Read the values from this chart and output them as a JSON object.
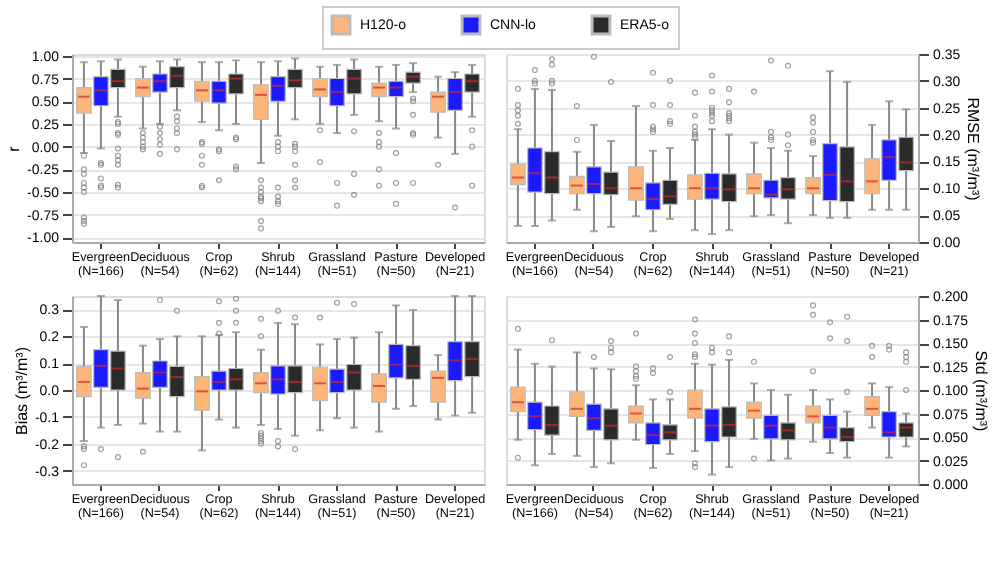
{
  "chart_data": [
    {
      "type": "box",
      "ylabel": "r",
      "legend": "top",
      "grid": "y",
      "categories": [
        "Evergreen (N=166)",
        "Deciduous (N=54)",
        "Crop (N=62)",
        "Shrub (N=144)",
        "Grassland (N=51)",
        "Pasture (N=50)",
        "Developed (N=21)"
      ],
      "ylim": [
        -1.05,
        1.02
      ],
      "yticks": [
        {
          "value": -1,
          "label": "-1.00"
        },
        {
          "value": -0.75,
          "label": "-0.75"
        },
        {
          "value": -0.5,
          "label": "-0.50"
        },
        {
          "value": -0.25,
          "label": "-0.25"
        },
        {
          "value": 0,
          "label": "0.00"
        },
        {
          "value": 0.25,
          "label": "0.25"
        },
        {
          "value": 0.5,
          "label": "0.50"
        },
        {
          "value": 0.75,
          "label": "0.75"
        },
        {
          "value": 1,
          "label": "1.00"
        }
      ],
      "series": [
        {
          "name": "H120-o",
          "color": "#fdb57a",
          "boxes": [
            {
              "low": -0.07,
              "q1": 0.37,
              "median": 0.55,
              "q3": 0.65,
              "high": 0.93,
              "outliers": [
                -0.1,
                -0.25,
                -0.3,
                -0.4,
                -0.45,
                -0.5,
                -0.78,
                -0.82,
                -0.85
              ]
            },
            {
              "low": 0.2,
              "q1": 0.55,
              "median": 0.65,
              "q3": 0.75,
              "high": 0.88,
              "outliers": [
                0.15,
                0.1,
                0.05,
                0,
                -0.03
              ]
            },
            {
              "low": 0.27,
              "q1": 0.5,
              "median": 0.62,
              "q3": 0.72,
              "high": 0.93,
              "outliers": [
                0.05,
                0.03,
                -0.1,
                -0.2,
                -0.43,
                -0.45
              ]
            },
            {
              "low": -0.18,
              "q1": 0.3,
              "median": 0.57,
              "q3": 0.68,
              "high": 0.93,
              "outliers": [
                -0.37,
                -0.45,
                -0.5,
                -0.55,
                -0.57,
                -0.6,
                -0.82,
                -0.9
              ]
            },
            {
              "low": 0.25,
              "q1": 0.55,
              "median": 0.63,
              "q3": 0.75,
              "high": 0.88,
              "outliers": [
                0.18,
                -0.17
              ]
            },
            {
              "low": 0.28,
              "q1": 0.55,
              "median": 0.65,
              "q3": 0.7,
              "high": 0.88,
              "outliers": [
                0.15,
                0.05,
                0,
                -0.25,
                -0.43
              ]
            },
            {
              "low": 0.1,
              "q1": 0.38,
              "median": 0.55,
              "q3": 0.6,
              "high": 0.77,
              "outliers": [
                -0.2
              ]
            }
          ]
        },
        {
          "name": "CNN-lo",
          "color": "#1a1aff",
          "boxes": [
            {
              "low": -0.02,
              "q1": 0.45,
              "median": 0.62,
              "q3": 0.77,
              "high": 0.94,
              "outliers": [
                -0.18,
                -0.2,
                -0.35,
                -0.43,
                -0.45
              ]
            },
            {
              "low": 0.25,
              "q1": 0.6,
              "median": 0.72,
              "q3": 0.8,
              "high": 0.94,
              "outliers": [
                0.22,
                0.15,
                0.08,
                0.02,
                -0.08
              ]
            },
            {
              "low": 0.18,
              "q1": 0.48,
              "median": 0.62,
              "q3": 0.72,
              "high": 0.93,
              "outliers": [
                -0.03,
                -0.05,
                -0.37
              ]
            },
            {
              "low": 0.12,
              "q1": 0.5,
              "median": 0.67,
              "q3": 0.77,
              "high": 0.94,
              "outliers": [
                0.05,
                0,
                -0.05,
                -0.45,
                -0.55,
                -0.6,
                -0.63
              ]
            },
            {
              "low": 0.15,
              "q1": 0.45,
              "median": 0.6,
              "q3": 0.75,
              "high": 0.9,
              "outliers": [
                -0.4,
                -0.65
              ]
            },
            {
              "low": 0.2,
              "q1": 0.55,
              "median": 0.65,
              "q3": 0.72,
              "high": 0.9,
              "outliers": [
                -0.07,
                -0.4,
                -0.63
              ]
            },
            {
              "low": -0.08,
              "q1": 0.4,
              "median": 0.6,
              "q3": 0.75,
              "high": 0.82,
              "outliers": [
                -0.67
              ]
            }
          ]
        },
        {
          "name": "ERA5-o",
          "color": "#2b2b2b",
          "boxes": [
            {
              "low": 0.33,
              "q1": 0.65,
              "median": 0.72,
              "q3": 0.85,
              "high": 0.96,
              "outliers": [
                0.27,
                0.25,
                0.15,
                0.13,
                -0.02,
                -0.1,
                -0.15,
                -0.2,
                -0.42,
                -0.45
              ]
            },
            {
              "low": 0.4,
              "q1": 0.65,
              "median": 0.78,
              "q3": 0.88,
              "high": 0.96,
              "outliers": [
                0.33,
                0.28,
                0.2,
                0.15,
                -0.03
              ]
            },
            {
              "low": 0.25,
              "q1": 0.58,
              "median": 0.75,
              "q3": 0.8,
              "high": 0.95,
              "outliers": [
                0.1,
                0.08,
                -0.22,
                -0.25
              ]
            },
            {
              "low": 0.3,
              "q1": 0.65,
              "median": 0.73,
              "q3": 0.85,
              "high": 0.97,
              "outliers": [
                0.03,
                0,
                -0.05,
                -0.2,
                -0.37,
                -0.45
              ]
            },
            {
              "low": 0.35,
              "q1": 0.58,
              "median": 0.75,
              "q3": 0.85,
              "high": 0.96,
              "outliers": [
                0.17,
                -0.3,
                -0.53
              ]
            },
            {
              "low": 0.6,
              "q1": 0.7,
              "median": 0.77,
              "q3": 0.82,
              "high": 0.92,
              "outliers": [
                0.53,
                0.5,
                0.35,
                0.15,
                0.13,
                -0.4
              ]
            },
            {
              "low": 0.33,
              "q1": 0.6,
              "median": 0.72,
              "q3": 0.8,
              "high": 0.9,
              "outliers": [
                0.18,
                0,
                -0.43
              ]
            }
          ]
        }
      ]
    },
    {
      "type": "box",
      "ylabel": "RMSE (m³/m³)",
      "grid": "y",
      "categories": [
        "Evergreen (N=166)",
        "Deciduous (N=54)",
        "Crop (N=62)",
        "Shrub (N=144)",
        "Grassland (N=51)",
        "Pasture (N=50)",
        "Developed (N=21)"
      ],
      "ylim": [
        0,
        0.35
      ],
      "yticks": [
        {
          "value": 0,
          "label": "0.00"
        },
        {
          "value": 0.05,
          "label": "0.05"
        },
        {
          "value": 0.1,
          "label": "0.10"
        },
        {
          "value": 0.15,
          "label": "0.15"
        },
        {
          "value": 0.2,
          "label": "0.20"
        },
        {
          "value": 0.25,
          "label": "0.25"
        },
        {
          "value": 0.3,
          "label": "0.30"
        },
        {
          "value": 0.35,
          "label": "0.35"
        }
      ],
      "series": [
        {
          "color": "#fdb57a",
          "boxes": [
            {
              "low": 0.03,
              "q1": 0.107,
              "median": 0.12,
              "q3": 0.145,
              "high": 0.21,
              "outliers": [
                0.22,
                0.235,
                0.245,
                0.255,
                0.285
              ]
            },
            {
              "low": 0.06,
              "q1": 0.09,
              "median": 0.105,
              "q3": 0.122,
              "high": 0.168,
              "outliers": [
                0.19,
                0.253
              ]
            },
            {
              "low": 0.048,
              "q1": 0.078,
              "median": 0.1,
              "q3": 0.14,
              "high": 0.253
            },
            {
              "low": 0.022,
              "q1": 0.08,
              "median": 0.1,
              "q3": 0.125,
              "high": 0.19,
              "outliers": [
                0.195,
                0.2,
                0.205,
                0.215,
                0.235,
                0.278
              ]
            },
            {
              "low": 0.048,
              "q1": 0.09,
              "median": 0.1,
              "q3": 0.127,
              "high": 0.185,
              "outliers": [
                0.28
              ]
            },
            {
              "low": 0.05,
              "q1": 0.09,
              "median": 0.1,
              "q3": 0.12,
              "high": 0.16,
              "outliers": [
                0.185,
                0.19,
                0.205,
                0.222,
                0.232
              ]
            },
            {
              "low": 0.06,
              "q1": 0.09,
              "median": 0.113,
              "q3": 0.155,
              "high": 0.218
            }
          ]
        },
        {
          "color": "#1a1aff",
          "boxes": [
            {
              "low": 0.03,
              "q1": 0.093,
              "median": 0.128,
              "q3": 0.175,
              "high": 0.285,
              "outliers": [
                0.295,
                0.3,
                0.32
              ]
            },
            {
              "low": 0.02,
              "q1": 0.09,
              "median": 0.108,
              "q3": 0.14,
              "high": 0.218,
              "outliers": [
                0.345
              ]
            },
            {
              "low": 0.02,
              "q1": 0.06,
              "median": 0.08,
              "q3": 0.11,
              "high": 0.17,
              "outliers": [
                0.205,
                0.21,
                0.215,
                0.255,
                0.315
              ]
            },
            {
              "low": 0.015,
              "q1": 0.08,
              "median": 0.1,
              "q3": 0.128,
              "high": 0.21,
              "outliers": [
                0.225,
                0.235,
                0.24,
                0.245,
                0.25,
                0.28,
                0.31
              ]
            },
            {
              "low": 0.05,
              "q1": 0.082,
              "median": 0.088,
              "q3": 0.115,
              "high": 0.175,
              "outliers": [
                0.19,
                0.195,
                0.205,
                0.338
              ]
            },
            {
              "low": 0.045,
              "q1": 0.077,
              "median": 0.125,
              "q3": 0.183,
              "high": 0.318
            },
            {
              "low": 0.06,
              "q1": 0.115,
              "median": 0.158,
              "q3": 0.19,
              "high": 0.262
            }
          ]
        },
        {
          "color": "#2b2b2b",
          "boxes": [
            {
              "low": 0.04,
              "q1": 0.09,
              "median": 0.12,
              "q3": 0.168,
              "high": 0.283,
              "outliers": [
                0.295,
                0.3,
                0.33,
                0.34
              ]
            },
            {
              "low": 0.028,
              "q1": 0.088,
              "median": 0.1,
              "q3": 0.13,
              "high": 0.188,
              "outliers": [
                0.298
              ]
            },
            {
              "low": 0.043,
              "q1": 0.07,
              "median": 0.085,
              "q3": 0.115,
              "high": 0.175,
              "outliers": [
                0.22,
                0.225,
                0.255,
                0.3
              ]
            },
            {
              "low": 0.022,
              "q1": 0.075,
              "median": 0.098,
              "q3": 0.127,
              "high": 0.2,
              "outliers": [
                0.225,
                0.23,
                0.235,
                0.24,
                0.26,
                0.285
              ]
            },
            {
              "low": 0.035,
              "q1": 0.08,
              "median": 0.098,
              "q3": 0.12,
              "high": 0.17,
              "outliers": [
                0.18,
                0.2,
                0.328
              ]
            },
            {
              "low": 0.045,
              "q1": 0.075,
              "median": 0.113,
              "q3": 0.177,
              "high": 0.298
            },
            {
              "low": 0.06,
              "q1": 0.133,
              "median": 0.148,
              "q3": 0.195,
              "high": 0.247
            }
          ]
        }
      ]
    },
    {
      "type": "box",
      "ylabel": "Bias (m³/m³)",
      "grid": "y",
      "categories": [
        "Evergreen (N=166)",
        "Deciduous (N=54)",
        "Crop (N=62)",
        "Shrub (N=144)",
        "Grassland (N=51)",
        "Pasture (N=50)",
        "Developed (N=21)"
      ],
      "ylim": [
        -0.35,
        0.35
      ],
      "yticks": [
        {
          "value": -0.3,
          "label": "-0.3"
        },
        {
          "value": -0.2,
          "label": "-0.2"
        },
        {
          "value": -0.1,
          "label": "-0.1"
        },
        {
          "value": 0,
          "label": "0.0"
        },
        {
          "value": 0.1,
          "label": "0.1"
        },
        {
          "value": 0.2,
          "label": "0.2"
        },
        {
          "value": 0.3,
          "label": "0.3"
        }
      ],
      "series": [
        {
          "color": "#fdb57a",
          "boxes": [
            {
              "low": -0.19,
              "q1": -0.025,
              "median": 0.03,
              "q3": 0.088,
              "high": 0.235,
              "outliers": [
                -0.21,
                -0.22,
                -0.28
              ]
            },
            {
              "low": -0.125,
              "q1": -0.03,
              "median": 0.005,
              "q3": 0.065,
              "high": 0.165,
              "outliers": [
                -0.23
              ]
            },
            {
              "low": -0.225,
              "q1": -0.075,
              "median": -0.005,
              "q3": 0.05,
              "high": 0.2
            },
            {
              "low": -0.13,
              "q1": -0.01,
              "median": 0.025,
              "q3": 0.065,
              "high": 0.15,
              "outliers": [
                -0.16,
                -0.17,
                -0.18,
                -0.19,
                -0.2,
                0.2,
                0.265
              ]
            },
            {
              "low": -0.15,
              "q1": -0.04,
              "median": 0.025,
              "q3": 0.085,
              "high": 0.17,
              "outliers": [
                0.27
              ]
            },
            {
              "low": -0.155,
              "q1": -0.045,
              "median": 0.015,
              "q3": 0.06,
              "high": 0.215
            },
            {
              "low": -0.11,
              "q1": -0.045,
              "median": 0.045,
              "q3": 0.07,
              "high": 0.13
            }
          ]
        },
        {
          "color": "#1a1aff",
          "boxes": [
            {
              "low": -0.14,
              "q1": 0.01,
              "median": 0.09,
              "q3": 0.15,
              "high": 0.35,
              "outliers": [
                -0.22
              ]
            },
            {
              "low": -0.155,
              "q1": 0.01,
              "median": 0.065,
              "q3": 0.108,
              "high": 0.19,
              "outliers": [
                0.335
              ]
            },
            {
              "low": -0.11,
              "q1": 0,
              "median": 0.03,
              "q3": 0.07,
              "high": 0.205,
              "outliers": [
                0.21,
                0.25,
                0.33
              ]
            },
            {
              "low": -0.145,
              "q1": -0.015,
              "median": 0.04,
              "q3": 0.09,
              "high": 0.25,
              "outliers": [
                -0.19,
                -0.21,
                0.295
              ]
            },
            {
              "low": -0.105,
              "q1": -0.01,
              "median": 0.03,
              "q3": 0.078,
              "high": 0.19,
              "outliers": [
                0.325
              ]
            },
            {
              "low": -0.07,
              "q1": 0.045,
              "median": 0.095,
              "q3": 0.17,
              "high": 0.315
            },
            {
              "low": -0.095,
              "q1": 0.035,
              "median": 0.11,
              "q3": 0.18,
              "high": 0.35
            }
          ]
        },
        {
          "color": "#2b2b2b",
          "boxes": [
            {
              "low": -0.13,
              "q1": 0,
              "median": 0.08,
              "q3": 0.145,
              "high": 0.335,
              "outliers": [
                -0.25
              ]
            },
            {
              "low": -0.155,
              "q1": -0.025,
              "median": 0.048,
              "q3": 0.088,
              "high": 0.2,
              "outliers": [
                0.295
              ]
            },
            {
              "low": -0.14,
              "q1": 0,
              "median": 0.04,
              "q3": 0.08,
              "high": 0.215,
              "outliers": [
                0.25,
                0.295,
                0.34
              ]
            },
            {
              "low": -0.17,
              "q1": -0.01,
              "median": 0.03,
              "q3": 0.09,
              "high": 0.245,
              "outliers": [
                -0.22,
                0.27
              ]
            },
            {
              "low": -0.14,
              "q1": 0,
              "median": 0.065,
              "q3": 0.095,
              "high": 0.195,
              "outliers": [
                0.32
              ]
            },
            {
              "low": -0.06,
              "q1": 0.04,
              "median": 0.09,
              "q3": 0.165,
              "high": 0.298
            },
            {
              "low": -0.085,
              "q1": 0.05,
              "median": 0.115,
              "q3": 0.18,
              "high": 0.35
            }
          ]
        }
      ]
    },
    {
      "type": "box",
      "ylabel": "Std (m³/m³)",
      "grid": "y",
      "categories": [
        "Evergreen (N=166)",
        "Deciduous (N=54)",
        "Crop (N=62)",
        "Shrub (N=144)",
        "Grassland (N=51)",
        "Pasture (N=50)",
        "Developed (N=21)"
      ],
      "ylim": [
        0,
        0.2
      ],
      "yticks": [
        {
          "value": 0,
          "label": "0.000"
        },
        {
          "value": 0.025,
          "label": "0.025"
        },
        {
          "value": 0.05,
          "label": "0.050"
        },
        {
          "value": 0.075,
          "label": "0.075"
        },
        {
          "value": 0.1,
          "label": "0.100"
        },
        {
          "value": 0.125,
          "label": "0.125"
        },
        {
          "value": 0.15,
          "label": "0.150"
        },
        {
          "value": 0.175,
          "label": "0.175"
        },
        {
          "value": 0.2,
          "label": "0.200"
        }
      ],
      "series": [
        {
          "color": "#fdb57a",
          "boxes": [
            {
              "low": 0.047,
              "q1": 0.077,
              "median": 0.087,
              "q3": 0.103,
              "high": 0.143,
              "outliers": [
                0.028,
                0.165
              ]
            },
            {
              "low": 0.03,
              "q1": 0.072,
              "median": 0.08,
              "q3": 0.098,
              "high": 0.14
            },
            {
              "low": 0.047,
              "q1": 0.065,
              "median": 0.075,
              "q3": 0.083,
              "high": 0.105,
              "outliers": [
                0.112,
                0.115,
                0.12,
                0.125,
                0.16
              ]
            },
            {
              "low": 0.035,
              "q1": 0.07,
              "median": 0.08,
              "q3": 0.1,
              "high": 0.128,
              "outliers": [
                0.018,
                0.022,
                0.135,
                0.138,
                0.15,
                0.16,
                0.175
              ]
            },
            {
              "low": 0.048,
              "q1": 0.07,
              "median": 0.078,
              "q3": 0.087,
              "high": 0.107,
              "outliers": [
                0.027,
                0.13
              ]
            },
            {
              "low": 0.045,
              "q1": 0.065,
              "median": 0.072,
              "q3": 0.083,
              "high": 0.1,
              "outliers": [
                0.12,
                0.18,
                0.19
              ]
            },
            {
              "low": 0.06,
              "q1": 0.073,
              "median": 0.08,
              "q3": 0.093,
              "high": 0.107,
              "outliers": [
                0.135,
                0.147
              ]
            }
          ]
        },
        {
          "color": "#1a1aff",
          "boxes": [
            {
              "low": 0.02,
              "q1": 0.058,
              "median": 0.072,
              "q3": 0.087,
              "high": 0.128
            },
            {
              "low": 0.018,
              "q1": 0.057,
              "median": 0.07,
              "q3": 0.085,
              "high": 0.123,
              "outliers": [
                0.135
              ]
            },
            {
              "low": 0.017,
              "q1": 0.042,
              "median": 0.052,
              "q3": 0.065,
              "high": 0.09,
              "outliers": [
                0.118,
                0.123
              ]
            },
            {
              "low": 0.01,
              "q1": 0.045,
              "median": 0.062,
              "q3": 0.08,
              "high": 0.127,
              "outliers": [
                0.14,
                0.145
              ]
            },
            {
              "low": 0.025,
              "q1": 0.048,
              "median": 0.062,
              "q3": 0.073,
              "high": 0.1
            },
            {
              "low": 0.033,
              "q1": 0.048,
              "median": 0.06,
              "q3": 0.073,
              "high": 0.09,
              "outliers": [
                0.155,
                0.172
              ]
            },
            {
              "low": 0.028,
              "q1": 0.05,
              "median": 0.055,
              "q3": 0.077,
              "high": 0.103,
              "outliers": [
                0.143,
                0.147
              ]
            }
          ]
        },
        {
          "color": "#2b2b2b",
          "boxes": [
            {
              "low": 0.032,
              "q1": 0.052,
              "median": 0.063,
              "q3": 0.083,
              "high": 0.125,
              "outliers": [
                0.153
              ]
            },
            {
              "low": 0.022,
              "q1": 0.047,
              "median": 0.062,
              "q3": 0.08,
              "high": 0.122,
              "outliers": [
                0.14,
                0.145,
                0.152
              ]
            },
            {
              "low": 0.032,
              "q1": 0.047,
              "median": 0.055,
              "q3": 0.063,
              "high": 0.09,
              "outliers": [
                0.098,
                0.135
              ]
            },
            {
              "low": 0.018,
              "q1": 0.05,
              "median": 0.063,
              "q3": 0.082,
              "high": 0.132,
              "outliers": [
                0.14,
                0.157
              ]
            },
            {
              "low": 0.027,
              "q1": 0.047,
              "median": 0.057,
              "q3": 0.065,
              "high": 0.095
            },
            {
              "low": 0.028,
              "q1": 0.045,
              "median": 0.05,
              "q3": 0.06,
              "high": 0.077,
              "outliers": [
                0.098,
                0.152,
                0.178
              ]
            },
            {
              "low": 0.04,
              "q1": 0.05,
              "median": 0.06,
              "q3": 0.065,
              "high": 0.075,
              "outliers": [
                0.1,
                0.13,
                0.135,
                0.14
              ]
            }
          ]
        }
      ]
    }
  ]
}
